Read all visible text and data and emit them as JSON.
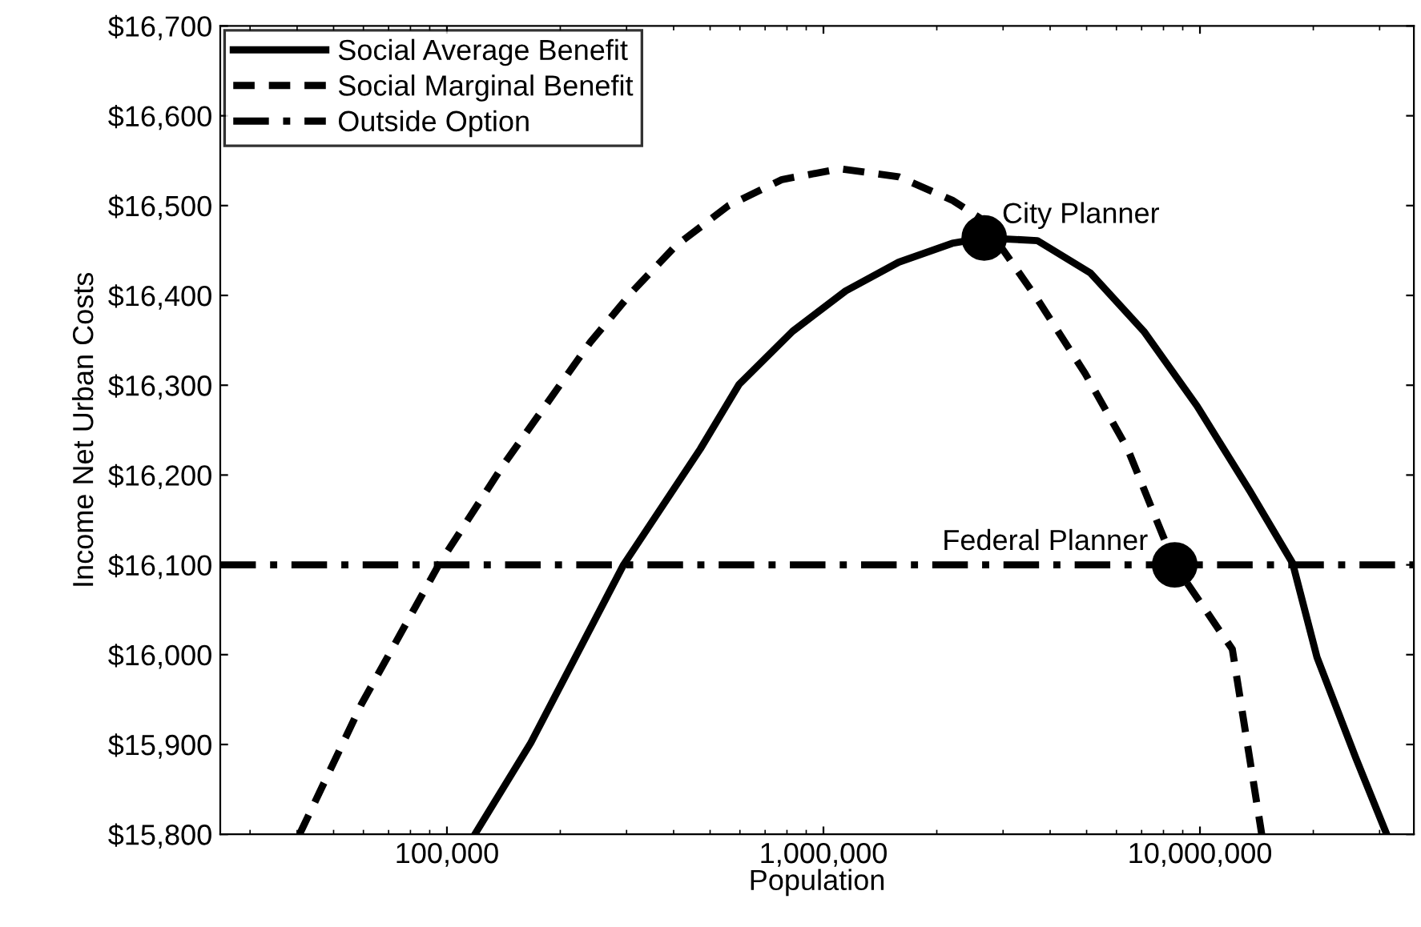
{
  "chart_data": {
    "type": "line",
    "xlabel": "Population",
    "ylabel": "Income Net Urban Costs",
    "log": "x",
    "grid": false,
    "legend": "top left",
    "xlim": [
      25000,
      37000000
    ],
    "xticks": [
      {
        "value": 100000,
        "label": "100,000"
      },
      {
        "value": 1000000,
        "label": "1,000,000"
      },
      {
        "value": 10000000,
        "label": "10,000,000"
      }
    ],
    "ylim": [
      15800,
      16700
    ],
    "yticks": [
      {
        "value": 15800,
        "label": "$15,800"
      },
      {
        "value": 15900,
        "label": "$15,900"
      },
      {
        "value": 16000,
        "label": "$16,000"
      },
      {
        "value": 16100,
        "label": "$16,100"
      },
      {
        "value": 16200,
        "label": "$16,200"
      },
      {
        "value": 16300,
        "label": "$16,300"
      },
      {
        "value": 16400,
        "label": "$16,400"
      },
      {
        "value": 16500,
        "label": "$16,500"
      },
      {
        "value": 16600,
        "label": "$16,600"
      },
      {
        "value": 16700,
        "label": "$16,700"
      }
    ],
    "series": [
      {
        "name": "Social Average Benefit",
        "color": "#000000",
        "line_style": "solid",
        "x": [
          118600,
          167100,
          294400,
          470900,
          597000,
          827900,
          1146000,
          1585000,
          2198000,
          2673000,
          3698000,
          5117000,
          7096000,
          9817000,
          13580000,
          17620000,
          20460000,
          25940000,
          31330000
        ],
        "values": [
          15800,
          15902,
          16100,
          16229,
          16301,
          16360,
          16405,
          16437,
          16458,
          16464,
          16461,
          16425,
          16360,
          16277,
          16182,
          16102,
          15997,
          15885,
          15800
        ]
      },
      {
        "name": "Social Marginal Benefit",
        "color": "#000000",
        "line_style": "dashed",
        "x": [
          40600,
          59300,
          95100,
          141600,
          240400,
          311900,
          404600,
          559800,
          776200,
          1109000,
          1585000,
          2198000,
          2630000,
          3698000,
          4955000,
          6427000,
          8570000,
          12190000,
          14590000
        ],
        "values": [
          15800,
          15945,
          16100,
          16212,
          16348,
          16405,
          16455,
          16500,
          16529,
          16541,
          16532,
          16506,
          16485,
          16396,
          16313,
          16229,
          16100,
          16006,
          15800
        ]
      },
      {
        "type": "scatter",
        "color": "#000000",
        "marker": "circle",
        "x": [
          2673000,
          8570000
        ],
        "values": [
          16464,
          16100
        ]
      }
    ],
    "ref_lines": [
      {
        "axis": "y",
        "value": 16100,
        "label": "Outside Option",
        "color": "#000000",
        "line_style": "dashdot"
      }
    ],
    "annotations": [
      {
        "text": "City Planner",
        "x": 2673000,
        "y": 16464
      },
      {
        "text": "Federal Planner",
        "x": 8570000,
        "y": 16100
      }
    ]
  }
}
